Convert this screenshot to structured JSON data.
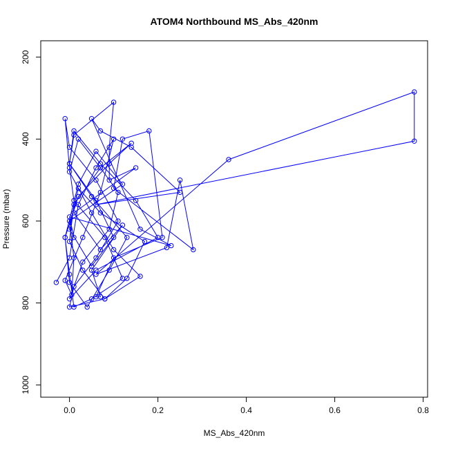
{
  "chart_data": {
    "type": "line",
    "title": "ATOM4 Northbound MS_Abs_420nm",
    "xlabel": "MS_Abs_420nm",
    "ylabel": "Pressure (mbar)",
    "xlim": [
      -0.065,
      0.81
    ],
    "ylim": [
      1030,
      160
    ],
    "y_reversed": true,
    "x_ticks": [
      {
        "value": 0.0,
        "label": "0.0"
      },
      {
        "value": 0.2,
        "label": "0.2"
      },
      {
        "value": 0.4,
        "label": "0.4"
      },
      {
        "value": 0.6,
        "label": "0.6"
      },
      {
        "value": 0.8,
        "label": "0.8"
      }
    ],
    "y_ticks": [
      {
        "value": 200,
        "label": "200"
      },
      {
        "value": 400,
        "label": "400"
      },
      {
        "value": 600,
        "label": "600"
      },
      {
        "value": 800,
        "label": "800"
      },
      {
        "value": 1000,
        "label": "1000"
      }
    ],
    "series": [
      {
        "color": "#0000ff",
        "line_width": 1,
        "marker": "open-circle",
        "x": [
          -0.03,
          0.0,
          0.02,
          0.06,
          0.1,
          0.07,
          0.03,
          -0.01,
          0.005,
          0.01,
          0.0,
          0.12,
          0.06,
          0.02,
          -0.01,
          0.0,
          0.04,
          0.09,
          0.13,
          0.05,
          0.0,
          0.01,
          0.07,
          0.15,
          0.2,
          0.06,
          0.0,
          0.03,
          0.09,
          0.11,
          0.07,
          0.02,
          0.0,
          0.05,
          0.1,
          0.16,
          0.08,
          0.0,
          0.01,
          0.06,
          0.11,
          0.06,
          0.0,
          -0.01,
          0.0,
          0.01,
          0.08,
          0.12,
          0.05,
          0.01,
          0.0,
          -0.01,
          0.02,
          0.09,
          0.14,
          0.07,
          0.01,
          0.0,
          0.03,
          0.08,
          0.13,
          0.17,
          0.07,
          0.02,
          0.0,
          0.05,
          0.1,
          0.06,
          0.0,
          0.01,
          0.1,
          0.09,
          0.09,
          0.15,
          0.01,
          0.07,
          0.12,
          0.05,
          0.07,
          0.06,
          0.1,
          0.21,
          0.18,
          0.12,
          0.1,
          0.28,
          0.25,
          0.22,
          0.06,
          0.36,
          0.78,
          0.78,
          0.06,
          0.25,
          0.14,
          0.07,
          0.05,
          0.16,
          0.23,
          0.0,
          0.01
        ],
        "y": [
          750,
          690,
          560,
          470,
          400,
          530,
          640,
          745,
          780,
          690,
          600,
          510,
          430,
          510,
          640,
          750,
          810,
          720,
          640,
          540,
          460,
          380,
          460,
          550,
          640,
          720,
          790,
          700,
          620,
          530,
          470,
          400,
          480,
          580,
          670,
          735,
          790,
          810,
          760,
          690,
          600,
          500,
          420,
          350,
          470,
          550,
          640,
          740,
          790,
          810,
          730,
          640,
          540,
          460,
          410,
          470,
          560,
          650,
          720,
          790,
          740,
          650,
          580,
          520,
          620,
          710,
          640,
          550,
          460,
          390,
          310,
          420,
          500,
          470,
          580,
          670,
          610,
          720,
          785,
          785,
          690,
          640,
          380,
          400,
          520,
          670,
          500,
          665,
          730,
          450,
          285,
          405,
          560,
          530,
          420,
          380,
          350,
          620,
          660,
          590,
          640
        ]
      }
    ]
  }
}
